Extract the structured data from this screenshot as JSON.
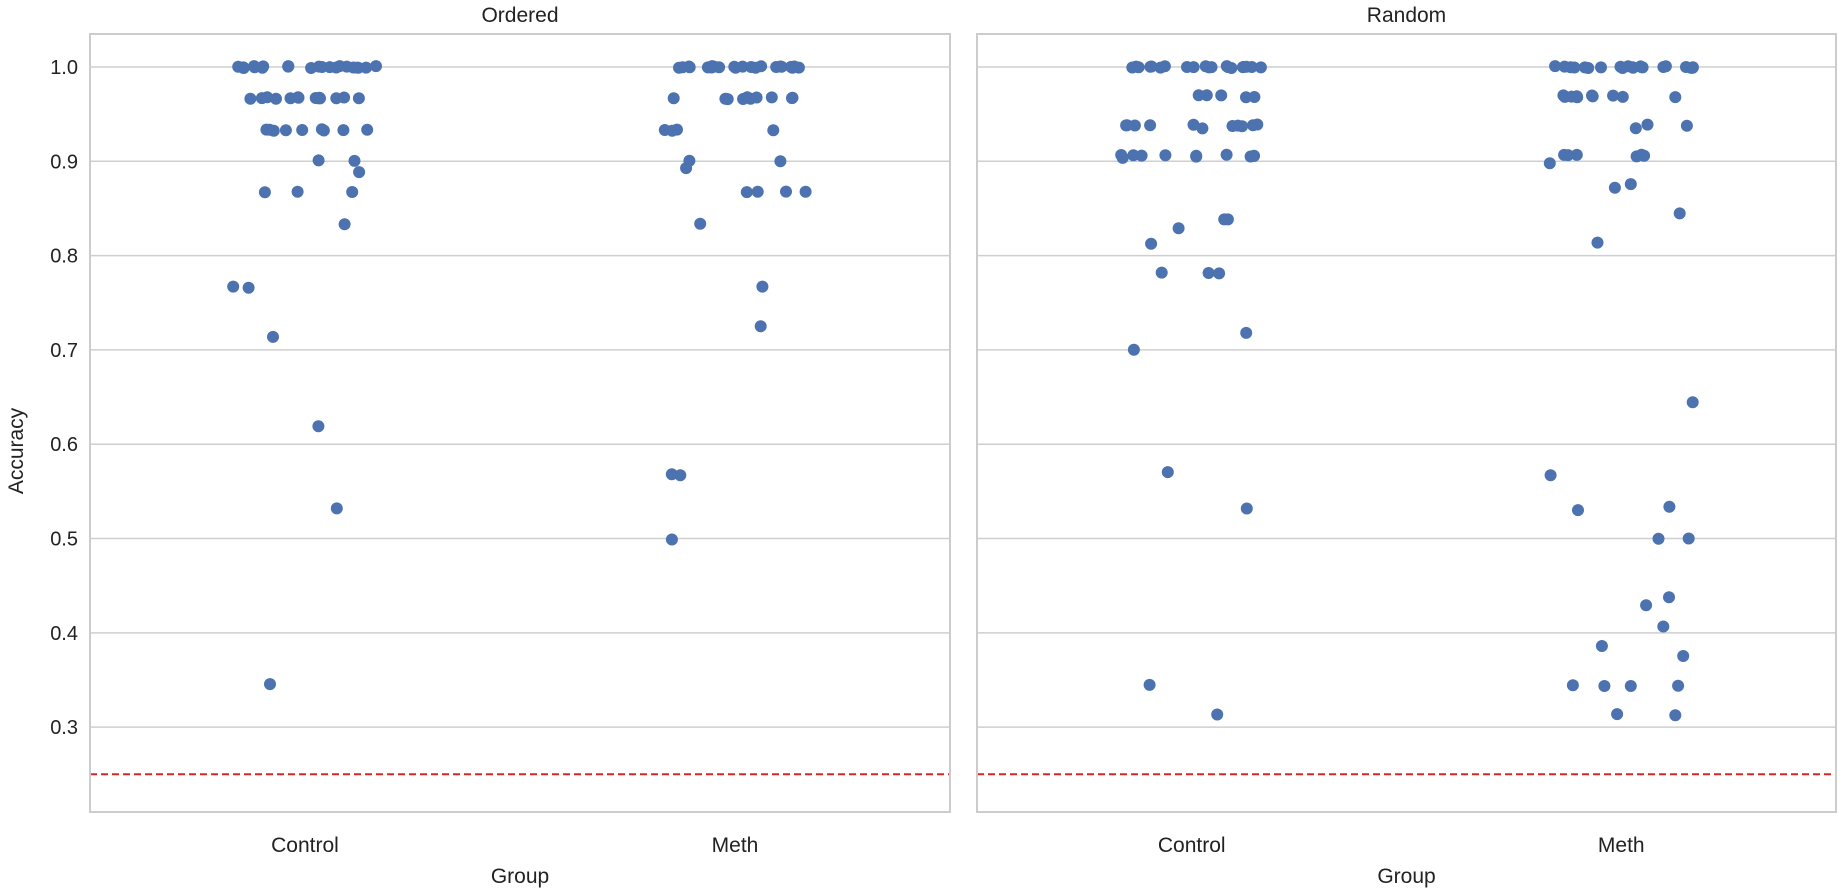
{
  "chart_data": {
    "type": "scatter",
    "style": "strip",
    "y_label": "Accuracy",
    "x_label": "Group",
    "categories": [
      "Control",
      "Meth"
    ],
    "y_range": [
      0.21,
      1.035
    ],
    "y_ticks": [
      0.3,
      0.4,
      0.5,
      0.6,
      0.7,
      0.8,
      0.9,
      1.0
    ],
    "y_tick_labels": [
      "0.3",
      "0.4",
      "0.5",
      "0.6",
      "0.7",
      "0.8",
      "0.9",
      "1.0"
    ],
    "reference_line": {
      "value": 0.25,
      "style": "dashed",
      "color": "#d62728"
    },
    "grid": true,
    "point_color": "#4c72b0",
    "panels": [
      {
        "title": "Ordered",
        "series": [
          {
            "name": "Control",
            "values": [
              1.0,
              1.0,
              1.0,
              1.0,
              1.0,
              1.0,
              1.0,
              1.0,
              1.0,
              1.0,
              1.0,
              1.0,
              1.0,
              1.0,
              1.0,
              1.0,
              1.0,
              1.0,
              1.0,
              1.0,
              1.0,
              1.0,
              0.967,
              0.967,
              0.967,
              0.967,
              0.967,
              0.967,
              0.967,
              0.967,
              0.967,
              0.967,
              0.967,
              0.967,
              0.967,
              0.967,
              0.933,
              0.933,
              0.933,
              0.933,
              0.933,
              0.933,
              0.933,
              0.933,
              0.933,
              0.9,
              0.9,
              0.889,
              0.867,
              0.867,
              0.867,
              0.833,
              0.767,
              0.767,
              0.714,
              0.62,
              0.533,
              0.345
            ]
          },
          {
            "name": "Meth",
            "values": [
              1.0,
              1.0,
              1.0,
              1.0,
              1.0,
              1.0,
              1.0,
              1.0,
              1.0,
              1.0,
              1.0,
              1.0,
              1.0,
              1.0,
              1.0,
              1.0,
              1.0,
              1.0,
              1.0,
              1.0,
              1.0,
              1.0,
              0.967,
              0.967,
              0.967,
              0.967,
              0.967,
              0.967,
              0.967,
              0.967,
              0.967,
              0.967,
              0.933,
              0.933,
              0.933,
              0.933,
              0.9,
              0.9,
              0.893,
              0.867,
              0.867,
              0.867,
              0.867,
              0.833,
              0.767,
              0.724,
              0.567,
              0.567,
              0.5
            ]
          }
        ]
      },
      {
        "title": "Random",
        "series": [
          {
            "name": "Control",
            "values": [
              1.0,
              1.0,
              1.0,
              1.0,
              1.0,
              1.0,
              1.0,
              1.0,
              1.0,
              1.0,
              1.0,
              1.0,
              1.0,
              1.0,
              1.0,
              1.0,
              1.0,
              1.0,
              1.0,
              1.0,
              0.969,
              0.969,
              0.969,
              0.969,
              0.969,
              0.938,
              0.938,
              0.938,
              0.938,
              0.938,
              0.938,
              0.938,
              0.938,
              0.938,
              0.938,
              0.935,
              0.906,
              0.906,
              0.906,
              0.906,
              0.906,
              0.906,
              0.906,
              0.906,
              0.906,
              0.906,
              0.903,
              0.839,
              0.839,
              0.828,
              0.813,
              0.781,
              0.781,
              0.781,
              0.719,
              0.7,
              0.571,
              0.531,
              0.344,
              0.313
            ]
          },
          {
            "name": "Meth",
            "values": [
              1.0,
              1.0,
              1.0,
              1.0,
              1.0,
              1.0,
              1.0,
              1.0,
              1.0,
              1.0,
              1.0,
              1.0,
              1.0,
              1.0,
              1.0,
              1.0,
              1.0,
              1.0,
              1.0,
              1.0,
              1.0,
              0.969,
              0.969,
              0.969,
              0.969,
              0.969,
              0.969,
              0.969,
              0.969,
              0.969,
              0.969,
              0.938,
              0.938,
              0.935,
              0.906,
              0.906,
              0.906,
              0.906,
              0.906,
              0.906,
              0.897,
              0.875,
              0.871,
              0.844,
              0.813,
              0.645,
              0.567,
              0.533,
              0.531,
              0.5,
              0.5,
              0.438,
              0.429,
              0.406,
              0.387,
              0.375,
              0.344,
              0.344,
              0.344,
              0.344,
              0.313,
              0.313
            ]
          }
        ]
      }
    ]
  }
}
